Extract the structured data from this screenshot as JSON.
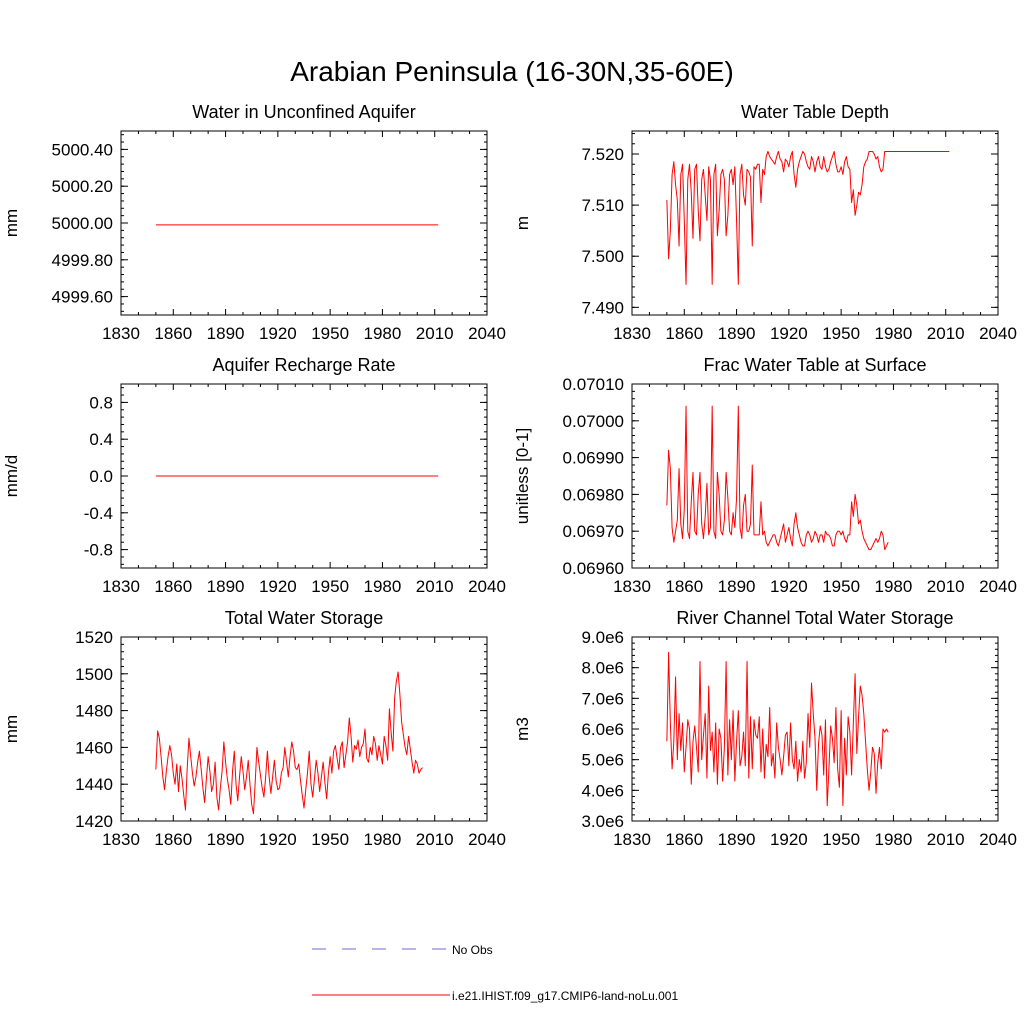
{
  "figure": {
    "title": "Arabian Peninsula (16-30N,35-60E)"
  },
  "legend": {
    "entries": [
      {
        "label": "No Obs",
        "color": "#6b6bd0",
        "style": "dashed"
      },
      {
        "label": "i.e21.IHIST.f09_g17.CMIP6-land-noLu.001",
        "color": "#ff0000",
        "style": "solid"
      }
    ]
  },
  "chart_data": [
    {
      "type": "line",
      "title": "Water in Unconfined Aquifer",
      "ylabel": "mm",
      "xlim": [
        1830,
        2040
      ],
      "ylim": [
        4999.5,
        5000.5
      ],
      "xticks": [
        1830,
        1860,
        1890,
        1920,
        1950,
        1980,
        2010,
        2040
      ],
      "yticks": [
        4999.6,
        4999.8,
        5000.0,
        5000.2,
        5000.4
      ],
      "ytick_labels": [
        "4999.60",
        "4999.80",
        "5000.00",
        "5000.20",
        "5000.40"
      ],
      "series": [
        {
          "color": "#ff0000",
          "x_start": 1850,
          "x_step": 1,
          "values": [
            4999.99,
            4999.99
          ]
        }
      ]
    },
    {
      "type": "line",
      "title": "Water Table Depth",
      "ylabel": "m",
      "xlim": [
        1830,
        2040
      ],
      "ylim": [
        7.4885,
        7.5245
      ],
      "xticks": [
        1830,
        1860,
        1890,
        1920,
        1950,
        1980,
        2010,
        2040
      ],
      "yticks": [
        7.49,
        7.5,
        7.51,
        7.52
      ],
      "ytick_labels": [
        "7.490",
        "7.500",
        "7.510",
        "7.520"
      ],
      "series": [
        {
          "color": "#ff0000",
          "x_start": 1850,
          "x_step": 1,
          "values": [
            7.511,
            7.4995,
            7.505,
            7.516,
            7.5185,
            7.514,
            7.511,
            7.502,
            7.516,
            7.518,
            7.507,
            7.4945,
            7.515,
            7.518,
            7.5125,
            7.5035,
            7.517,
            7.518,
            7.509,
            7.503,
            7.515,
            7.517,
            7.512,
            7.507,
            7.5175,
            7.515,
            7.4945,
            7.516,
            7.518,
            7.504,
            7.509,
            7.516,
            7.517,
            7.515,
            7.504,
            7.508,
            7.516,
            7.517,
            7.514,
            7.5175,
            7.507,
            7.4945,
            7.516,
            7.518,
            7.512,
            7.51,
            7.517,
            7.5165,
            7.5155,
            7.502,
            7.5175,
            7.517,
            7.518,
            7.518,
            7.5105,
            7.517,
            7.516,
            7.5195,
            7.5205,
            7.5195,
            7.519,
            7.5185,
            7.518,
            7.5195,
            7.5205,
            7.519,
            7.5185,
            7.5165,
            7.519,
            7.5185,
            7.5175,
            7.5195,
            7.5205,
            7.516,
            7.5135,
            7.517,
            7.5185,
            7.5195,
            7.5205,
            7.52,
            7.5185,
            7.5175,
            7.517,
            7.5195,
            7.5185,
            7.5165,
            7.5185,
            7.5195,
            7.5175,
            7.517,
            7.5195,
            7.5175,
            7.5165,
            7.517,
            7.5185,
            7.5195,
            7.5205,
            7.518,
            7.5165,
            7.5165,
            7.5175,
            7.516,
            7.5185,
            7.5195,
            7.5175,
            7.517,
            7.5105,
            7.513,
            7.508,
            7.51,
            7.5125,
            7.512,
            7.514,
            7.5175,
            7.5185,
            7.519,
            7.5205,
            7.5205,
            7.5205,
            7.52,
            7.519,
            7.5195,
            7.5175,
            7.5165,
            7.517,
            7.5205,
            7.5205,
            7.5205,
            7.5205,
            7.5205,
            7.5205,
            7.5205,
            7.5205,
            7.5205,
            7.5205,
            7.5205,
            7.5205,
            7.5205,
            7.5205,
            7.5205,
            7.5205,
            7.5205,
            7.5205,
            7.5205,
            7.5205,
            7.5205,
            7.5205,
            7.5205,
            7.5205,
            7.5205,
            7.5205,
            7.5205,
            7.5205,
            7.5205,
            7.5205,
            7.5205,
            7.5205,
            7.5205,
            7.5205,
            7.5205,
            7.5205,
            7.5205,
            7.5205
          ]
        }
      ]
    },
    {
      "type": "line",
      "title": "Aquifer Recharge Rate",
      "ylabel": "mm/d",
      "xlim": [
        1830,
        2040
      ],
      "ylim": [
        -1.0,
        1.0
      ],
      "xticks": [
        1830,
        1860,
        1890,
        1920,
        1950,
        1980,
        2010,
        2040
      ],
      "yticks": [
        -0.8,
        -0.4,
        0.0,
        0.4,
        0.8
      ],
      "ytick_labels": [
        "-0.8",
        "-0.4",
        "0.0",
        "0.4",
        "0.8"
      ],
      "series": [
        {
          "color": "#ff0000",
          "x_start": 1850,
          "x_step": 1,
          "values": [
            0.0,
            0.0
          ]
        }
      ]
    },
    {
      "type": "line",
      "title": "Frac Water Table at Surface",
      "ylabel": "unitless [0-1]",
      "xlim": [
        1830,
        2040
      ],
      "ylim": [
        0.0696,
        0.0701
      ],
      "xticks": [
        1830,
        1860,
        1890,
        1920,
        1950,
        1980,
        2010,
        2040
      ],
      "yticks": [
        0.0696,
        0.0697,
        0.0698,
        0.0699,
        0.07,
        0.0701
      ],
      "ytick_labels": [
        "0.06960",
        "0.06970",
        "0.06980",
        "0.06990",
        "0.07000",
        "0.07010"
      ],
      "series": [
        {
          "color": "#ff0000",
          "x_start": 1850,
          "x_step": 1,
          "values": [
            0.06977,
            0.06992,
            0.06987,
            0.06971,
            0.06967,
            0.0697,
            0.06973,
            0.06987,
            0.06972,
            0.06968,
            0.06976,
            0.07004,
            0.0697,
            0.06968,
            0.06978,
            0.06986,
            0.0697,
            0.06969,
            0.0698,
            0.06986,
            0.06972,
            0.06968,
            0.06974,
            0.06983,
            0.06969,
            0.06971,
            0.07004,
            0.0697,
            0.06968,
            0.06986,
            0.0698,
            0.0697,
            0.06969,
            0.06973,
            0.06986,
            0.06979,
            0.0697,
            0.06969,
            0.06975,
            0.06971,
            0.06979,
            0.07004,
            0.06971,
            0.06968,
            0.06977,
            0.0698,
            0.0697,
            0.0697,
            0.06972,
            0.06988,
            0.06969,
            0.06969,
            0.06969,
            0.06969,
            0.06978,
            0.06969,
            0.0697,
            0.06967,
            0.06966,
            0.06967,
            0.06968,
            0.06969,
            0.06969,
            0.06967,
            0.06966,
            0.06968,
            0.0697,
            0.06972,
            0.06967,
            0.06969,
            0.06971,
            0.06968,
            0.06966,
            0.06972,
            0.06975,
            0.06971,
            0.06969,
            0.06967,
            0.06966,
            0.06966,
            0.06969,
            0.0697,
            0.06969,
            0.06967,
            0.06968,
            0.0697,
            0.06969,
            0.06967,
            0.06969,
            0.06969,
            0.06967,
            0.0697,
            0.06969,
            0.06969,
            0.06968,
            0.06966,
            0.06966,
            0.06969,
            0.0697,
            0.0697,
            0.06969,
            0.0697,
            0.06968,
            0.06967,
            0.06969,
            0.06969,
            0.06978,
            0.06974,
            0.0698,
            0.06977,
            0.06972,
            0.06973,
            0.0697,
            0.06968,
            0.06967,
            0.06966,
            0.06965,
            0.06965,
            0.06966,
            0.06967,
            0.06968,
            0.06967,
            0.06968,
            0.0697,
            0.06969,
            0.06965,
            0.06966,
            0.06967
          ]
        }
      ]
    },
    {
      "type": "line",
      "title": "Total Water Storage",
      "ylabel": "mm",
      "xlim": [
        1830,
        2040
      ],
      "ylim": [
        1420,
        1520
      ],
      "xticks": [
        1830,
        1860,
        1890,
        1920,
        1950,
        1980,
        2010,
        2040
      ],
      "yticks": [
        1420,
        1440,
        1460,
        1480,
        1500,
        1520
      ],
      "ytick_labels": [
        "1420",
        "1440",
        "1460",
        "1480",
        "1500",
        "1520"
      ],
      "series": [
        {
          "color": "#ff0000",
          "x_start": 1850,
          "x_step": 1,
          "values": [
            1448,
            1469,
            1465,
            1455,
            1444,
            1437,
            1447,
            1455,
            1461,
            1456,
            1446,
            1440,
            1451,
            1436,
            1450,
            1443,
            1434,
            1426,
            1449,
            1465,
            1455,
            1446,
            1439,
            1444,
            1452,
            1458,
            1448,
            1438,
            1430,
            1443,
            1455,
            1447,
            1436,
            1440,
            1452,
            1433,
            1426,
            1438,
            1447,
            1463,
            1452,
            1443,
            1437,
            1429,
            1447,
            1458,
            1440,
            1431,
            1444,
            1455,
            1447,
            1437,
            1444,
            1453,
            1440,
            1429,
            1424,
            1441,
            1460,
            1452,
            1445,
            1438,
            1433,
            1444,
            1458,
            1444,
            1435,
            1444,
            1453,
            1442,
            1437,
            1438,
            1446,
            1449,
            1460,
            1452,
            1444,
            1455,
            1463,
            1458,
            1449,
            1448,
            1451,
            1442,
            1434,
            1427,
            1437,
            1446,
            1458,
            1440,
            1433,
            1443,
            1453,
            1446,
            1436,
            1444,
            1452,
            1441,
            1432,
            1446,
            1455,
            1446,
            1458,
            1461,
            1454,
            1448,
            1460,
            1463,
            1449,
            1456,
            1463,
            1476,
            1466,
            1452,
            1461,
            1459,
            1464,
            1455,
            1460,
            1462,
            1470,
            1454,
            1452,
            1460,
            1456,
            1466,
            1462,
            1453,
            1461,
            1456,
            1451,
            1466,
            1461,
            1453,
            1481,
            1468,
            1458,
            1487,
            1496,
            1501,
            1489,
            1474,
            1467,
            1460,
            1456,
            1466,
            1459,
            1452,
            1446,
            1453,
            1451,
            1446,
            1448,
            1449
          ]
        }
      ]
    },
    {
      "type": "line",
      "title": "River Channel Total Water Storage",
      "ylabel": "m3",
      "xlim": [
        1830,
        2040
      ],
      "ylim": [
        3000000,
        9000000
      ],
      "xticks": [
        1830,
        1860,
        1890,
        1920,
        1950,
        1980,
        2010,
        2040
      ],
      "yticks": [
        3000000,
        4000000,
        5000000,
        6000000,
        7000000,
        8000000,
        9000000
      ],
      "ytick_labels": [
        "3.0e6",
        "4.0e6",
        "5.0e6",
        "6.0e6",
        "7.0e6",
        "8.0e6",
        "9.0e6"
      ],
      "series": [
        {
          "color": "#ff0000",
          "x_start": 1850,
          "x_step": 1,
          "values": [
            5600000,
            8500000,
            6200000,
            4700000,
            5600000,
            7700000,
            5000000,
            6500000,
            5300000,
            6200000,
            4600000,
            5400000,
            6300000,
            6000000,
            4200000,
            5600000,
            6100000,
            5400000,
            4600000,
            8200000,
            5000000,
            5800000,
            6500000,
            4400000,
            7400000,
            5300000,
            5900000,
            4600000,
            6200000,
            4200000,
            6000000,
            5700000,
            4300000,
            5400000,
            8200000,
            4500000,
            6300000,
            5000000,
            6600000,
            4300000,
            5600000,
            6600000,
            4800000,
            5100000,
            5900000,
            4800000,
            8200000,
            4400000,
            6400000,
            4700000,
            6300000,
            5800000,
            5700000,
            6400000,
            4600000,
            6000000,
            4400000,
            5500000,
            5100000,
            6700000,
            4800000,
            5200000,
            4400000,
            6200000,
            5400000,
            5000000,
            4500000,
            5100000,
            5800000,
            5900000,
            4800000,
            6200000,
            5000000,
            4700000,
            5600000,
            4300000,
            5000000,
            4600000,
            5600000,
            4400000,
            4900000,
            6500000,
            5400000,
            7500000,
            6500000,
            5700000,
            4000000,
            5500000,
            6100000,
            5800000,
            4500000,
            6300000,
            3500000,
            4700000,
            6100000,
            5700000,
            4900000,
            6700000,
            4700000,
            4100000,
            6600000,
            3500000,
            5700000,
            4500000,
            6400000,
            5900000,
            4500000,
            6200000,
            7800000,
            5200000,
            6400000,
            7400000,
            7100000,
            6500000,
            5600000,
            4700000,
            4000000,
            4600000,
            5400000,
            5200000,
            3900000,
            4900000,
            5400000,
            4700000,
            6000000,
            5900000,
            6000000,
            5900000
          ]
        }
      ]
    }
  ]
}
